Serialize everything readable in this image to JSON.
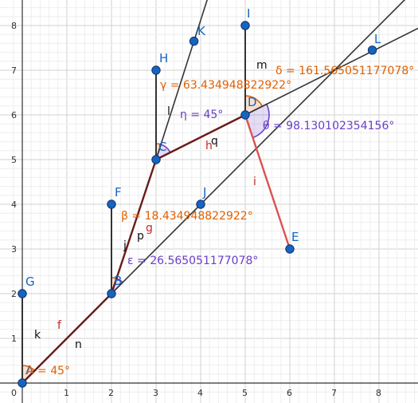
{
  "axes": {
    "x_ticks": [
      "0",
      "1",
      "2",
      "3",
      "4",
      "5",
      "6",
      "7",
      "8"
    ],
    "y_ticks": [
      "1",
      "2",
      "3",
      "4",
      "5",
      "6",
      "7",
      "8"
    ],
    "x_range": [
      -0.2,
      8.85
    ],
    "y_range": [
      -0.22,
      8.8
    ]
  },
  "colors": {
    "grid_minor": "#eeeeee",
    "grid_major": "#d0d0d0",
    "axis": "#333333",
    "point_fill": "#1565c0",
    "point_label": "#1565c0",
    "polyline": "#6b1a1a",
    "line_dark": "#333333",
    "segment_i": "#d9534f",
    "orange": "#e06000",
    "purple": "#6a3fc8",
    "red_label": "#c62828",
    "black_label": "#111111"
  },
  "points": [
    {
      "name": "A",
      "x": 0,
      "y": 0
    },
    {
      "name": "B",
      "x": 2,
      "y": 2
    },
    {
      "name": "C",
      "x": 3,
      "y": 5
    },
    {
      "name": "D",
      "x": 5,
      "y": 6
    },
    {
      "name": "E",
      "x": 6,
      "y": 3
    },
    {
      "name": "F",
      "x": 2,
      "y": 4
    },
    {
      "name": "G",
      "x": 0,
      "y": 2
    },
    {
      "name": "H",
      "x": 3,
      "y": 7
    },
    {
      "name": "I",
      "x": 5,
      "y": 8
    },
    {
      "name": "J",
      "x": 4,
      "y": 4
    },
    {
      "name": "K",
      "x": 3.85,
      "y": 7.65
    },
    {
      "name": "L",
      "x": 7.85,
      "y": 7.45
    }
  ],
  "segment_labels": [
    {
      "text": "f",
      "color": "red"
    },
    {
      "text": "k",
      "color": "black"
    },
    {
      "text": "n",
      "color": "black"
    },
    {
      "text": "j",
      "color": "black"
    },
    {
      "text": "p",
      "color": "black"
    },
    {
      "text": "g",
      "color": "red"
    },
    {
      "text": "l",
      "color": "black"
    },
    {
      "text": "h",
      "color": "red"
    },
    {
      "text": "q",
      "color": "black"
    },
    {
      "text": "m",
      "color": "black"
    },
    {
      "text": "i",
      "color": "red"
    }
  ],
  "angle_labels": {
    "alpha": "A = 45°",
    "beta": "β = 18.434948822922°",
    "epsilon": "ε = 26.565051177078°",
    "gamma": "γ = 63.434948822922°",
    "eta": "η = 45°",
    "delta": "δ = 161.565051177078°",
    "theta": "θ = 98.130102354156°"
  }
}
